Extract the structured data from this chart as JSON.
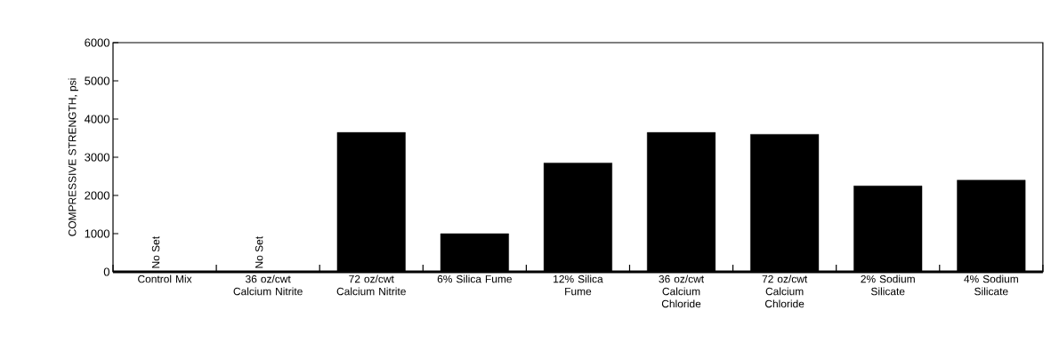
{
  "chart_data": {
    "type": "bar",
    "ylabel": "COMPRESSIVE STRENGTH, psi",
    "categories": [
      "Control Mix",
      "36 oz/cwt Calcium Nitrite",
      "72 oz/cwt Calcium Nitrite",
      "6% Silica Fume",
      "12% Silica Fume",
      "36 oz/cwt Calcium Chloride",
      "72 oz/cwt Calcium Chloride",
      "2% Sodium Silicate",
      "4% Sodium Silicate"
    ],
    "values": [
      0,
      0,
      3650,
      1000,
      2850,
      3650,
      3600,
      2250,
      2400
    ],
    "color": "#000000",
    "ylim": [
      0,
      6000
    ],
    "yticks": [
      0,
      1000,
      2000,
      3000,
      4000,
      5000,
      6000
    ],
    "grid": false,
    "annotations": [
      {
        "text": "No Set",
        "x": "Control Mix",
        "y": 0
      },
      {
        "text": "No Set",
        "x": "36 oz/cwt Calcium Nitrite",
        "y": 0
      }
    ]
  }
}
